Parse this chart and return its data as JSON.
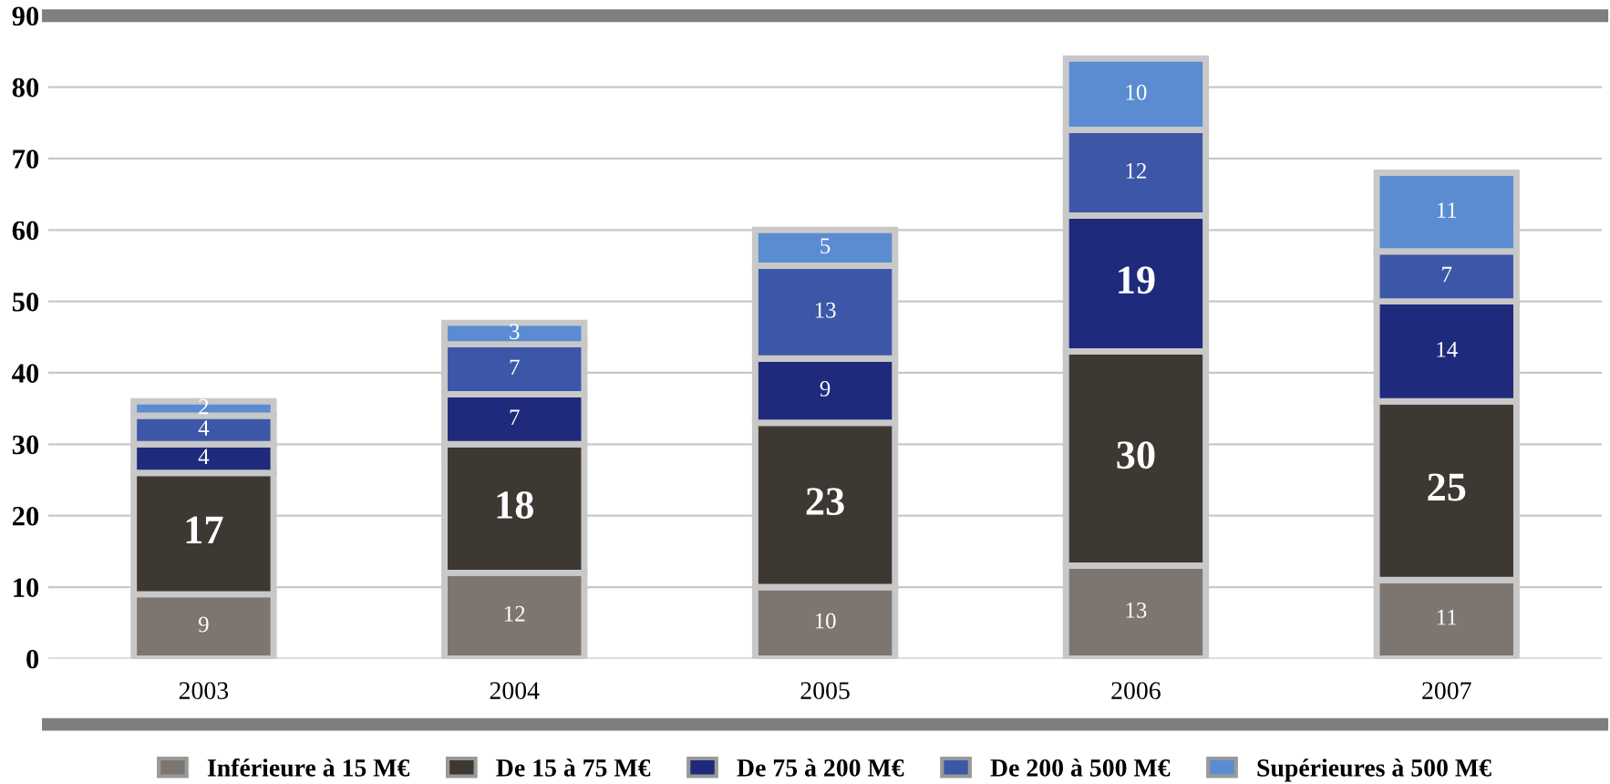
{
  "chart_data": {
    "type": "bar",
    "stacked": true,
    "categories": [
      "2003",
      "2004",
      "2005",
      "2006",
      "2007"
    ],
    "series": [
      {
        "name": "Inférieure à 15 M€",
        "color": "#7d7670",
        "values": [
          9,
          12,
          10,
          13,
          11
        ]
      },
      {
        "name": "De 15 à 75 M€",
        "color": "#3e3832",
        "values": [
          17,
          18,
          23,
          30,
          25
        ]
      },
      {
        "name": "De 75 à 200 M€",
        "color": "#1f2a7c",
        "values": [
          4,
          7,
          9,
          19,
          14
        ]
      },
      {
        "name": "De 200 à 500 M€",
        "color": "#3d57a8",
        "values": [
          4,
          7,
          13,
          12,
          7
        ]
      },
      {
        "name": "Supérieures à 500 M€",
        "color": "#5b8cd2",
        "values": [
          2,
          3,
          5,
          10,
          11
        ]
      }
    ],
    "ylim": [
      0,
      90
    ],
    "yticks": [
      0,
      10,
      20,
      30,
      40,
      50,
      60,
      70,
      80,
      90
    ],
    "grid": "y",
    "legend": "bottom",
    "data_labels": true
  }
}
